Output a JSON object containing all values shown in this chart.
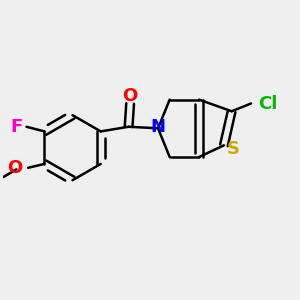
{
  "bg_color": "#efefef",
  "bond_color": "#000000",
  "bond_width": 1.8,
  "atoms": {
    "F": {
      "color": "#ff00cc",
      "fontsize": 13
    },
    "O": {
      "color": "#ff0000",
      "fontsize": 13
    },
    "N": {
      "color": "#0000ff",
      "fontsize": 13
    },
    "S": {
      "color": "#ccaa00",
      "fontsize": 13
    },
    "Cl": {
      "color": "#00bb00",
      "fontsize": 13
    }
  }
}
